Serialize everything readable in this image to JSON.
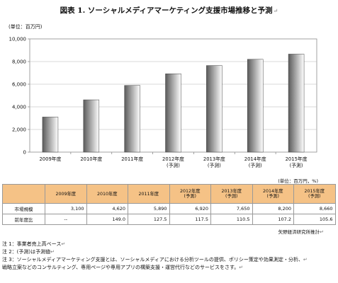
{
  "figure": {
    "title": "図表 1. ソーシャルメディアマーケティング支援市場推移と予測",
    "return_mark": "↵"
  },
  "chart_data": {
    "type": "bar",
    "unit_label": "(単位：百万円)",
    "categories": [
      [
        "2009年度"
      ],
      [
        "2010年度"
      ],
      [
        "2011年度"
      ],
      [
        "2012年度",
        "(予測)"
      ],
      [
        "2013年度",
        "(予測)"
      ],
      [
        "2014年度",
        "(予測)"
      ],
      [
        "2015年度",
        "(予測)"
      ]
    ],
    "values": [
      3100,
      4620,
      5890,
      6920,
      7650,
      8200,
      8660
    ],
    "ylim": [
      0,
      10000
    ],
    "yticks": [
      "0",
      "2,000",
      "4,000",
      "6,000",
      "8,000",
      "10,000"
    ],
    "grid": true,
    "bar_gradient": [
      "#5a5a5a",
      "#ffffff"
    ]
  },
  "table": {
    "unit_label": "(単位：百万円，%)",
    "headers": [
      [
        "2009年度"
      ],
      [
        "2010年度"
      ],
      [
        "2011年度"
      ],
      [
        "2012年度",
        "(予測)"
      ],
      [
        "2013年度",
        "(予測)"
      ],
      [
        "2014年度",
        "(予測)"
      ],
      [
        "2015年度",
        "(予測)"
      ]
    ],
    "rows": [
      {
        "label": "市場規模",
        "values": [
          "3,100",
          "4,620",
          "5,890",
          "6,920",
          "7,650",
          "8,200",
          "8,660"
        ]
      },
      {
        "label": "前年度比",
        "values": [
          "--",
          "149.0",
          "127.5",
          "117.5",
          "110.5",
          "107.2",
          "105.6"
        ]
      }
    ],
    "header_color": "#f5c286"
  },
  "source": "矢野経済研究所推計",
  "notes": [
    "注 1：事業者売上高ベース",
    "注 2：(予測)は予測値",
    "注 3：ソーシャルメディアマーケティング支援とは、ソーシャルメディアにおける分析ツールの提供、ポリシー策定や効果測定・分析、",
    "戦略立案などのコンサルティング、専用ページや専用アプリの構築支援・運営代行などのサービスをさす。"
  ]
}
